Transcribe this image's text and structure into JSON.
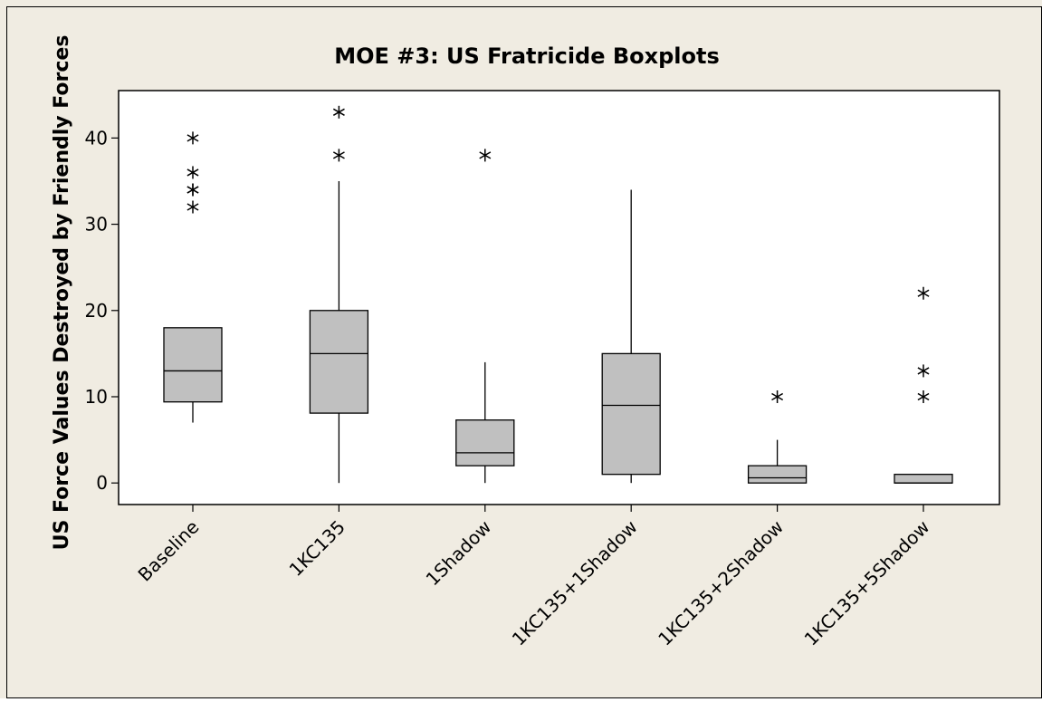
{
  "chart_data": {
    "type": "boxplot",
    "title": "MOE #3: US Fratricide Boxplots",
    "xlabel": "",
    "ylabel": "US Force Values Destroyed by Friendly Forces",
    "ylim": [
      -2.5,
      45.5
    ],
    "yticks": [
      0,
      10,
      20,
      30,
      40
    ],
    "grid": false,
    "categories": [
      "Baseline",
      "1KC135",
      "1Shadow",
      "1KC135+1Shadow",
      "1KC135+2Shadow",
      "1KC135+5Shadow"
    ],
    "boxes": [
      {
        "category": "Baseline",
        "whisker_low": 7,
        "q1": 9.4,
        "median": 13,
        "q3": 18,
        "whisker_high": 18,
        "outliers": [
          32,
          34,
          34,
          36,
          40
        ]
      },
      {
        "category": "1KC135",
        "whisker_low": 0,
        "q1": 8.1,
        "median": 15,
        "q3": 20,
        "whisker_high": 35,
        "outliers": [
          38,
          43
        ]
      },
      {
        "category": "1Shadow",
        "whisker_low": 0,
        "q1": 2,
        "median": 3.5,
        "q3": 7.3,
        "whisker_high": 14,
        "outliers": [
          38
        ]
      },
      {
        "category": "1KC135+1Shadow",
        "whisker_low": 0,
        "q1": 1,
        "median": 9,
        "q3": 15,
        "whisker_high": 34,
        "outliers": []
      },
      {
        "category": "1KC135+2Shadow",
        "whisker_low": 0,
        "q1": 0,
        "median": 0.6,
        "q3": 2,
        "whisker_high": 5,
        "outliers": [
          10
        ]
      },
      {
        "category": "1KC135+5Shadow",
        "whisker_low": 0,
        "q1": 0,
        "median": 0,
        "q3": 1,
        "whisker_high": 1,
        "outliers": [
          10,
          13,
          22
        ]
      }
    ],
    "colors": {
      "background": "#f0ece2",
      "plot_area": "#ffffff",
      "box_fill": "#c0c0c0",
      "line": "#000000"
    }
  }
}
